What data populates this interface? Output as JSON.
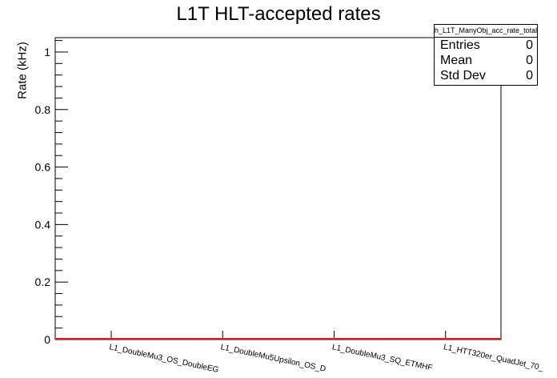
{
  "chart_data": {
    "type": "bar",
    "title": "L1T HLT-accepted rates",
    "ylabel": "Rate (kHz)",
    "xlabel": "",
    "ylim": [
      0,
      1.05
    ],
    "yticks": [
      "0",
      "0.2",
      "0.4",
      "0.6",
      "0.8",
      "1"
    ],
    "categories": [
      "L1_DoubleMu3_OS_DoubleEG",
      "L1_DoubleMu5Upsilon_OS_D",
      "L1_DoubleMu3_SQ_ETMHF",
      "L1_HTT320er_QuadJet_70_"
    ],
    "values": [
      0,
      0,
      0,
      0
    ],
    "line_color": "#e41a1c",
    "legend": "top-right",
    "stats": {
      "name": "h_L1T_ManyObj_acc_rate_total",
      "entries_label": "Entries",
      "entries_value": "0",
      "mean_label": "Mean",
      "mean_value": "0",
      "std_label": "Std Dev",
      "std_value": "0"
    }
  }
}
